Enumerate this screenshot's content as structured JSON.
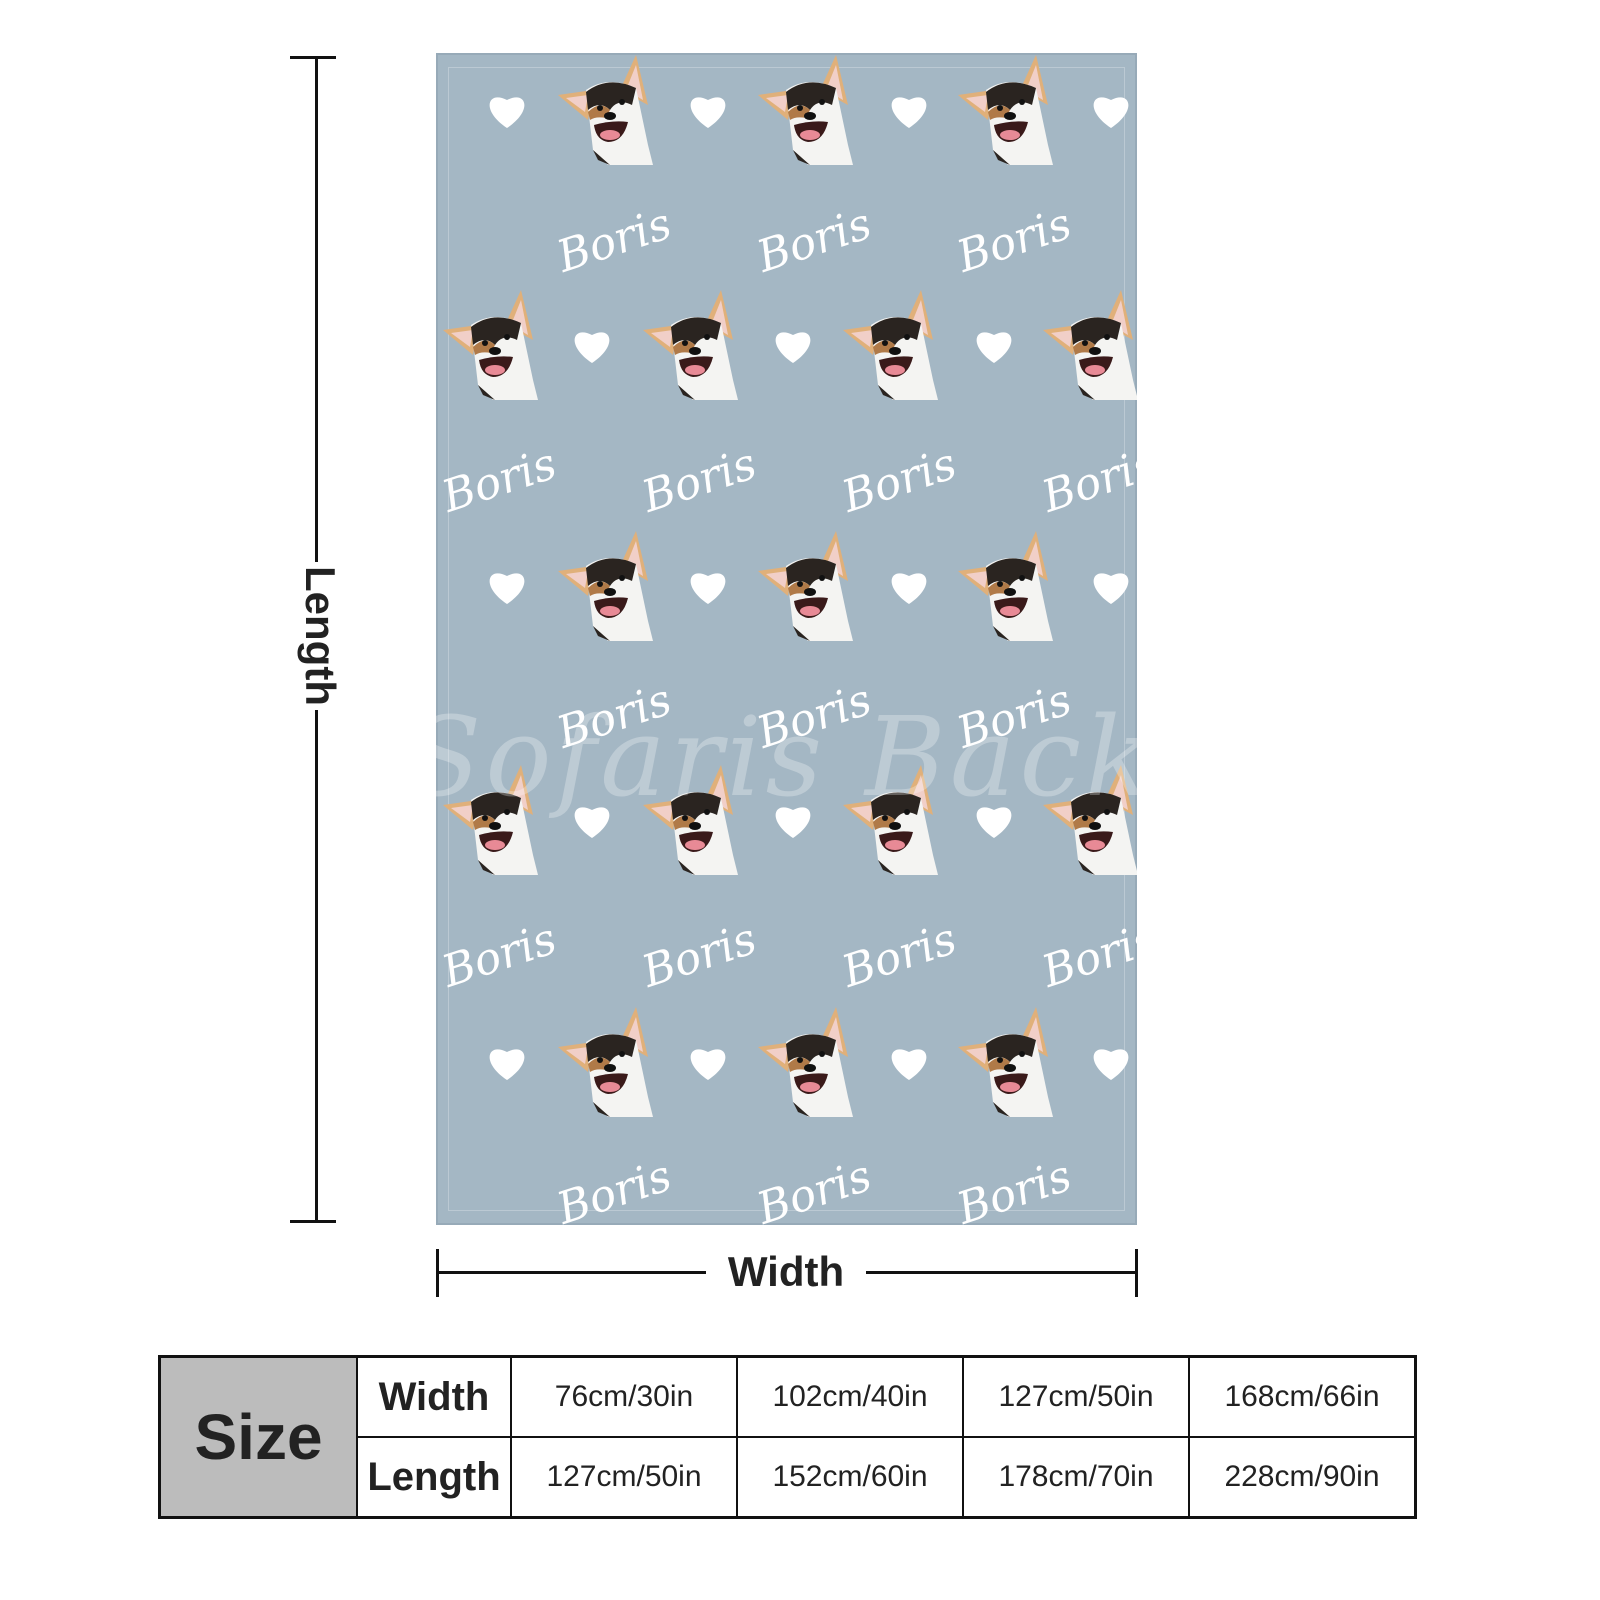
{
  "blanket": {
    "background_color": "#a4b7c4",
    "pattern_name": "Boris",
    "watermark": "Sofaris Backdrop",
    "pattern_icons": [
      "corgi-face",
      "heart-icon"
    ]
  },
  "dimensions": {
    "length_label": "Length",
    "width_label": "Width"
  },
  "size_table": {
    "header": "Size",
    "rows": [
      {
        "label": "Width",
        "values": [
          "76cm/30in",
          "102cm/40in",
          "127cm/50in",
          "168cm/66in"
        ]
      },
      {
        "label": "Length",
        "values": [
          "127cm/50in",
          "152cm/60in",
          "178cm/70in",
          "228cm/90in"
        ]
      }
    ]
  }
}
